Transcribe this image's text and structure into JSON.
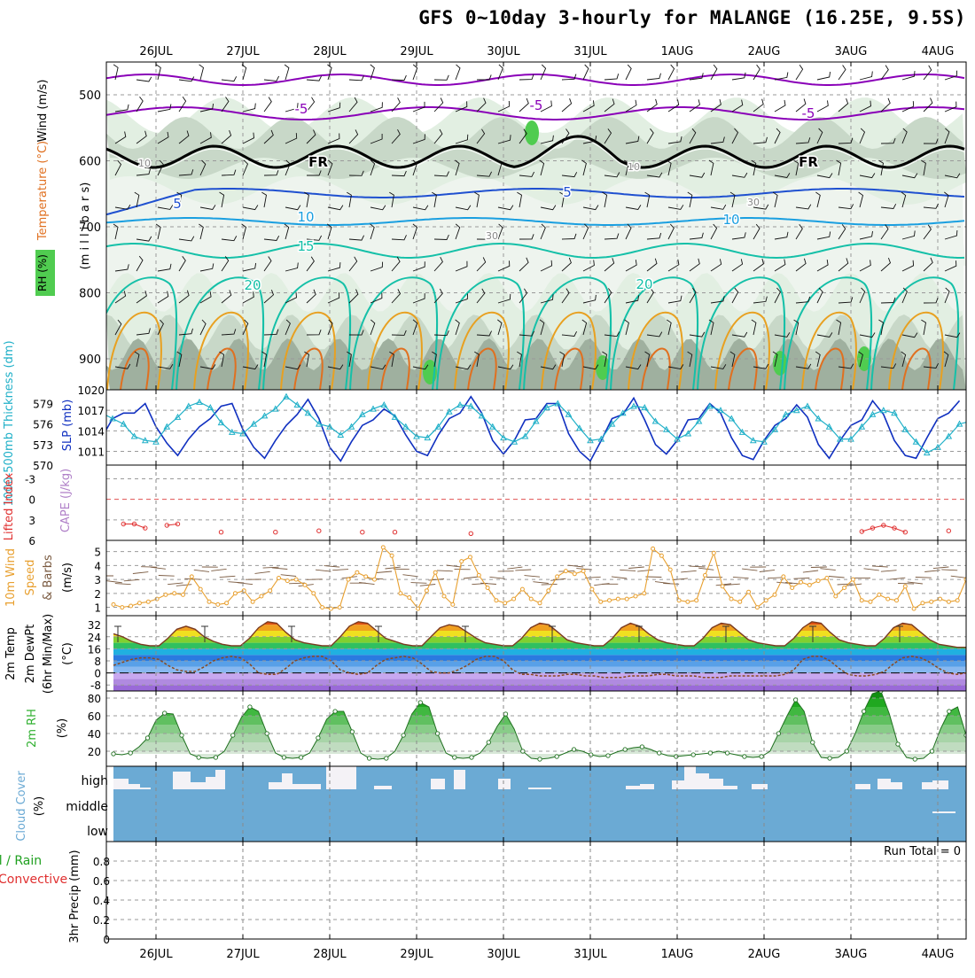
{
  "title": "GFS 0~10day 3-hourly for MALANGE (16.25E, 9.5S)",
  "date_labels": [
    "26JUL",
    "27JUL",
    "28JUL",
    "29JUL",
    "30JUL",
    "31JUL",
    "1AUG",
    "2AUG",
    "3AUG",
    "4AUG"
  ],
  "colors": {
    "purple": "#8a00b8",
    "black": "#000000",
    "blue": "#1f50d0",
    "ltblue": "#1a9fe0",
    "teal": "#15c0a8",
    "orange": "#e8a020",
    "dkorange": "#e07020",
    "rh1": "#e2efe2",
    "rh2": "#c8d8c8",
    "rh3": "#9fb09f",
    "rh4": "#50cc50",
    "slp": "#1030c0",
    "thick": "#20b0c8",
    "li": "#e03030",
    "wind": "#e8a030",
    "dew": "#8a4a20",
    "rh2m": "#30b030",
    "cloud": "#6baad4",
    "precip_total": "#20a020",
    "precip_conv": "#e03030"
  },
  "panels": {
    "upper": {
      "axis_label_wind": "Wind (m/s)",
      "axis_label_temp": "Temperature (°C)",
      "axis_label_rh": "RH (%)",
      "axis_label_mb": "(m i l l i b a r s)",
      "ticks": [
        "500",
        "600",
        "700",
        "800",
        "900"
      ],
      "contour_labels": [
        "-5",
        "-5",
        "-5",
        "FR",
        "FR",
        "5",
        "5",
        "10",
        "10",
        "15",
        "20",
        "20",
        "10",
        "10",
        "30",
        "30"
      ]
    },
    "slp": {
      "label_thick": "1000-500mb Thickness (dm)",
      "label_slp": "SLP (mb)",
      "thick_ticks": [
        "579",
        "576",
        "573",
        "570"
      ],
      "slp_ticks": [
        "1020",
        "1017",
        "1014",
        "1011"
      ]
    },
    "li": {
      "label_li": "Lifted Index",
      "label_cape": "CAPE (J/kg)",
      "ticks": [
        "-3",
        "0",
        "3",
        "6"
      ]
    },
    "wind10": {
      "label_a": "10m Wind",
      "label_b": "Speed",
      "label_c": "& Barbs",
      "label_units": "(m/s)",
      "ticks": [
        "5",
        "4",
        "3",
        "2",
        "1"
      ]
    },
    "temp2m": {
      "label_a": "2m Temp",
      "label_b": "2m DewPt",
      "label_c": "(6hr Min/Max)",
      "label_units": "(°C)",
      "ticks": [
        "32",
        "24",
        "16",
        "8",
        "0",
        "-8"
      ]
    },
    "rh2m": {
      "label_a": "2m RH",
      "label_units": "(%)",
      "ticks": [
        "80",
        "60",
        "40",
        "20"
      ]
    },
    "cloud": {
      "label_a": "Cloud Cover",
      "label_units": "(%)",
      "levels": [
        "high",
        "middle",
        "low"
      ]
    },
    "precip": {
      "label_a": "3hr Precip (mm)",
      "label_total": "Total / Rain",
      "label_conv": "Convective",
      "run_total": "Run Total = 0",
      "ticks": [
        "0.8",
        "0.6",
        "0.4",
        "0.2",
        "0"
      ]
    }
  },
  "chart_data": [
    {
      "type": "line",
      "panel": "1000-500mb Thickness (dm) & SLP (mb)",
      "x_unit": "3-hourly steps from 25JUL 15Z",
      "series": [
        {
          "name": "SLP (mb)",
          "axis": "right",
          "ylim": [
            1009,
            1020
          ],
          "values": [
            1014.6,
            1014.0,
            1013.0,
            1015.8,
            1016.6,
            1016.6,
            1018.0,
            1014.6,
            1012.2,
            1010.4,
            1012.8,
            1014.6,
            1015.8,
            1017.6,
            1018.0,
            1014.2,
            1011.6,
            1010.0,
            1012.6,
            1014.8,
            1016.4,
            1018.6,
            1015.8,
            1011.6,
            1009.6,
            1012.4,
            1014.8,
            1015.6,
            1017.2,
            1016.2,
            1013.4,
            1011.0,
            1010.4,
            1013.4,
            1015.8,
            1016.6,
            1019.0,
            1016.6,
            1012.6,
            1010.6,
            1012.6,
            1015.6,
            1015.8,
            1018.0,
            1018.0,
            1013.6,
            1011.0,
            1009.6,
            1012.6,
            1015.8,
            1016.4,
            1018.8,
            1015.6,
            1012.0,
            1010.6,
            1012.6,
            1015.6,
            1015.8,
            1018.0,
            1016.6,
            1013.0,
            1010.4,
            1009.8,
            1012.6,
            1014.8,
            1015.8,
            1017.8,
            1016.0,
            1012.0,
            1010.0,
            1012.6,
            1014.8,
            1015.6,
            1018.4,
            1016.4,
            1012.6,
            1010.4,
            1010.0,
            1013.0,
            1015.8,
            1016.6,
            1018.4
          ]
        },
        {
          "name": "1000-500mb Thickness (dm)",
          "axis": "left",
          "ylim": [
            570,
            581
          ],
          "values": [
            576.6,
            577.4,
            577.6,
            576.8,
            576.0,
            574.2,
            573.6,
            573.4,
            575.6,
            577.0,
            578.6,
            579.2,
            578.4,
            576.2,
            574.8,
            574.6,
            576.0,
            577.2,
            578.2,
            580.0,
            578.8,
            577.6,
            576.0,
            575.6,
            574.4,
            575.6,
            577.4,
            578.2,
            578.8,
            577.0,
            575.6,
            574.2,
            574.0,
            575.6,
            577.8,
            578.8,
            578.6,
            577.2,
            575.6,
            574.0,
            573.4,
            574.2,
            576.4,
            578.4,
            579.0,
            577.4,
            575.4,
            573.6,
            573.8,
            576.0,
            577.6,
            578.6,
            578.4,
            576.4,
            575.2,
            573.8,
            574.6,
            576.4,
            578.6,
            578.0,
            576.8,
            574.8,
            573.6,
            573.4,
            575.2,
            577.4,
            578.0,
            578.6,
            576.8,
            575.6,
            573.8,
            573.8,
            575.6,
            577.4,
            578.0,
            577.6,
            575.2,
            573.4,
            571.8,
            572.6,
            574.2,
            576.0,
            576.4,
            575.6,
            574.0,
            572.8,
            572.0,
            573.0
          ]
        }
      ]
    },
    {
      "type": "line",
      "panel": "Lifted Index / CAPE (J/kg)",
      "ylim": [
        6,
        -5
      ],
      "series": [
        {
          "name": "Lifted Index",
          "values": [
            4.0,
            4.4,
            null,
            null,
            3.6,
            3.6,
            4.2,
            null,
            3.8,
            3.6,
            null,
            null,
            null,
            4.8,
            null,
            null,
            null,
            null,
            4.8,
            null,
            null,
            null,
            4.6,
            null,
            null,
            null,
            4.8,
            null,
            null,
            4.8,
            null,
            null,
            null,
            null,
            null,
            null,
            5.0,
            null,
            null,
            null,
            null,
            null,
            null,
            null,
            null,
            null,
            null,
            null,
            null,
            null,
            null,
            null,
            null,
            null,
            null,
            null,
            null,
            null,
            null,
            null,
            null,
            null,
            null,
            null,
            null,
            null,
            null,
            null,
            null,
            null,
            null,
            null,
            4.7,
            4.2,
            3.8,
            4.2,
            4.8,
            null,
            null,
            null,
            4.6,
            null
          ]
        }
      ]
    },
    {
      "type": "line",
      "panel": "10m Wind Speed & Barbs (m/s)",
      "ylim": [
        0.4,
        5.8
      ],
      "series": [
        {
          "name": "10m Wind Speed",
          "values": [
            1.2,
            1.0,
            1.1,
            1.3,
            1.4,
            1.6,
            1.9,
            2.0,
            1.9,
            3.2,
            2.3,
            1.4,
            1.2,
            1.3,
            2.0,
            2.2,
            1.4,
            1.8,
            2.2,
            3.1,
            2.9,
            3.0,
            2.6,
            2.0,
            1.0,
            0.9,
            1.0,
            3.0,
            3.5,
            3.2,
            3.0,
            5.3,
            4.7,
            2.0,
            1.7,
            0.9,
            2.2,
            3.5,
            1.8,
            1.2,
            4.3,
            4.6,
            3.3,
            2.4,
            1.5,
            1.3,
            1.6,
            2.3,
            1.6,
            1.3,
            2.2,
            3.2,
            3.6,
            3.4,
            3.6,
            2.3,
            1.4,
            1.5,
            1.6,
            1.6,
            1.8,
            2.0,
            5.2,
            4.7,
            3.7,
            1.5,
            1.4,
            1.5,
            3.3,
            4.9,
            2.5,
            1.6,
            1.4,
            2.1,
            1.0,
            1.5,
            1.9,
            3.2,
            2.4,
            2.8,
            2.6,
            2.9,
            3.1,
            1.8,
            2.4,
            3.0,
            1.5,
            1.4,
            1.9,
            1.6,
            1.5,
            2.5,
            0.9,
            1.3,
            1.4,
            1.6,
            1.4,
            1.5,
            3.0
          ]
        }
      ]
    },
    {
      "type": "area",
      "panel": "2m Temp / 2m DewPt (6hr Min/Max) (°C)",
      "ylim": [
        -12,
        38
      ],
      "series": [
        {
          "name": "2m Temp",
          "values": [
            26,
            24,
            21,
            19,
            18,
            18,
            23,
            29,
            31,
            29,
            24,
            21,
            19,
            18,
            18,
            23,
            30,
            34,
            33,
            27,
            22,
            20,
            19,
            18,
            18,
            24,
            31,
            34,
            33,
            28,
            23,
            21,
            19,
            18,
            18,
            24,
            30,
            32,
            31,
            27,
            23,
            20,
            19,
            18,
            18,
            23,
            30,
            33,
            32,
            27,
            22,
            20,
            19,
            18,
            18,
            23,
            30,
            33,
            31,
            26,
            22,
            20,
            19,
            18,
            18,
            23,
            30,
            33,
            32,
            27,
            22,
            20,
            19,
            18,
            18,
            23,
            30,
            34,
            33,
            27,
            22,
            20,
            19,
            18,
            18,
            23,
            30,
            33,
            32,
            27,
            22,
            19,
            18,
            17,
            17
          ]
        },
        {
          "name": "2m DewPt",
          "values": [
            5,
            7,
            9,
            10,
            10,
            9,
            5,
            2,
            1,
            1,
            4,
            8,
            10,
            11,
            10,
            6,
            0,
            -1,
            -1,
            3,
            8,
            10,
            11,
            11,
            8,
            2,
            0,
            -1,
            0,
            5,
            9,
            10,
            11,
            10,
            6,
            1,
            0,
            0,
            2,
            5,
            9,
            11,
            11,
            8,
            2,
            -1,
            -1,
            -2,
            -2,
            -2,
            -1,
            -1,
            -2,
            -2,
            -3,
            -3,
            -3,
            -2,
            -2,
            -2,
            -1,
            -1,
            -2,
            -2,
            -2,
            -3,
            -3,
            -3,
            -2,
            -2,
            -2,
            -2,
            -2,
            -2,
            -1,
            2,
            9,
            11,
            11,
            8,
            3,
            -1,
            -2,
            -2,
            -1,
            1,
            6,
            10,
            11,
            10,
            7,
            3,
            0,
            -1,
            0
          ]
        }
      ]
    },
    {
      "type": "area",
      "panel": "2m RH (%)",
      "ylim": [
        10,
        90
      ],
      "series": [
        {
          "name": "2m RH",
          "values": [
            17,
            16,
            18,
            25,
            35,
            55,
            63,
            62,
            38,
            17,
            13,
            12,
            13,
            20,
            38,
            58,
            70,
            65,
            40,
            18,
            13,
            12,
            13,
            18,
            35,
            56,
            65,
            65,
            42,
            18,
            12,
            11,
            12,
            20,
            38,
            62,
            75,
            70,
            40,
            18,
            13,
            12,
            13,
            18,
            30,
            48,
            62,
            45,
            20,
            12,
            11,
            12,
            14,
            18,
            22,
            20,
            16,
            14,
            15,
            19,
            22,
            24,
            25,
            22,
            18,
            15,
            14,
            15,
            16,
            17,
            18,
            20,
            18,
            16,
            14,
            13,
            14,
            20,
            40,
            60,
            78,
            65,
            30,
            13,
            12,
            13,
            20,
            40,
            65,
            85,
            88,
            62,
            28,
            13,
            11,
            12,
            20,
            45,
            65,
            70,
            38
          ]
        }
      ]
    },
    {
      "type": "line",
      "panel": "3hr Precip (mm)",
      "ylim": [
        0,
        1.0
      ],
      "series": [
        {
          "name": "Total / Rain",
          "values": []
        },
        {
          "name": "Convective",
          "values": []
        }
      ]
    }
  ]
}
